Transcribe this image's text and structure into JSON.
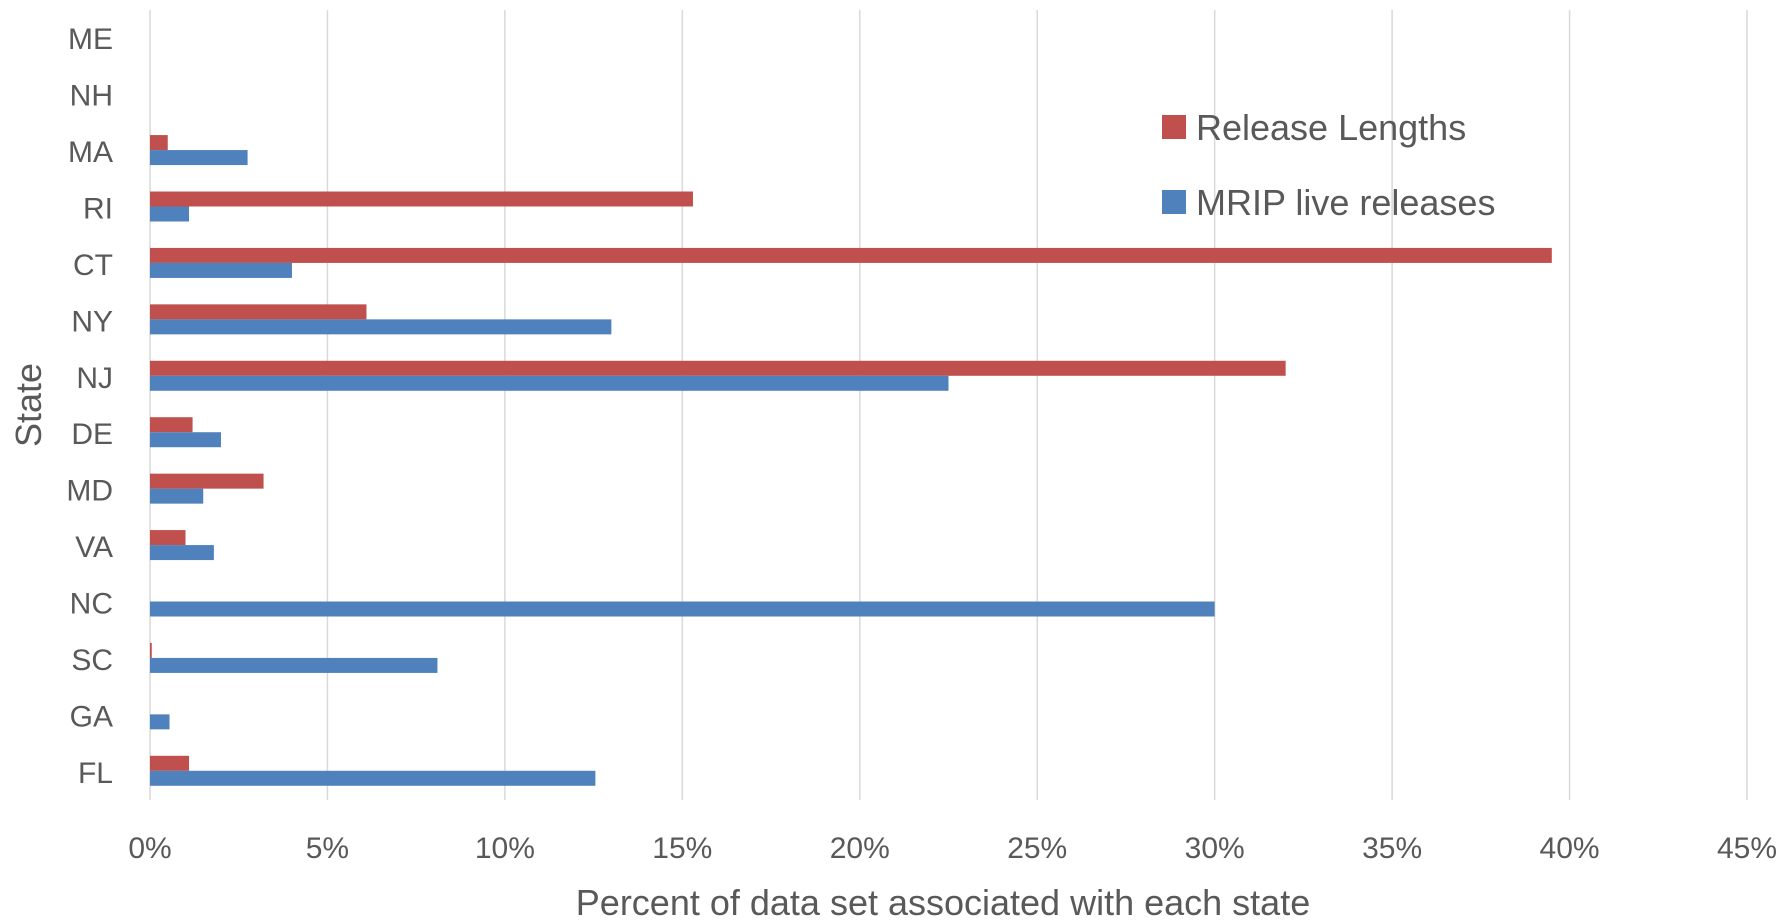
{
  "chart_data": {
    "type": "bar",
    "orientation": "horizontal",
    "title": "",
    "xlabel": "Percent of data set associated with each state",
    "ylabel": "State",
    "xlim": [
      0,
      45
    ],
    "x_ticks": [
      "0%",
      "5%",
      "10%",
      "15%",
      "20%",
      "25%",
      "30%",
      "35%",
      "40%",
      "45%"
    ],
    "grid": "vertical",
    "legend_position": "top-right",
    "categories": [
      "ME",
      "NH",
      "MA",
      "RI",
      "CT",
      "NY",
      "NJ",
      "DE",
      "MD",
      "VA",
      "NC",
      "SC",
      "GA",
      "FL"
    ],
    "series": [
      {
        "name": "Release Lengths",
        "color": "#C0504D",
        "values": [
          0,
          0,
          0.5,
          15.3,
          39.5,
          6.1,
          32.0,
          1.2,
          3.2,
          1.0,
          0,
          0.05,
          0,
          1.1
        ]
      },
      {
        "name": "MRIP live releases",
        "color": "#4F81BD",
        "values": [
          0,
          0,
          2.75,
          1.1,
          4.0,
          13.0,
          22.5,
          2.0,
          1.5,
          1.8,
          30.0,
          8.1,
          0.55,
          12.55
        ]
      }
    ]
  }
}
